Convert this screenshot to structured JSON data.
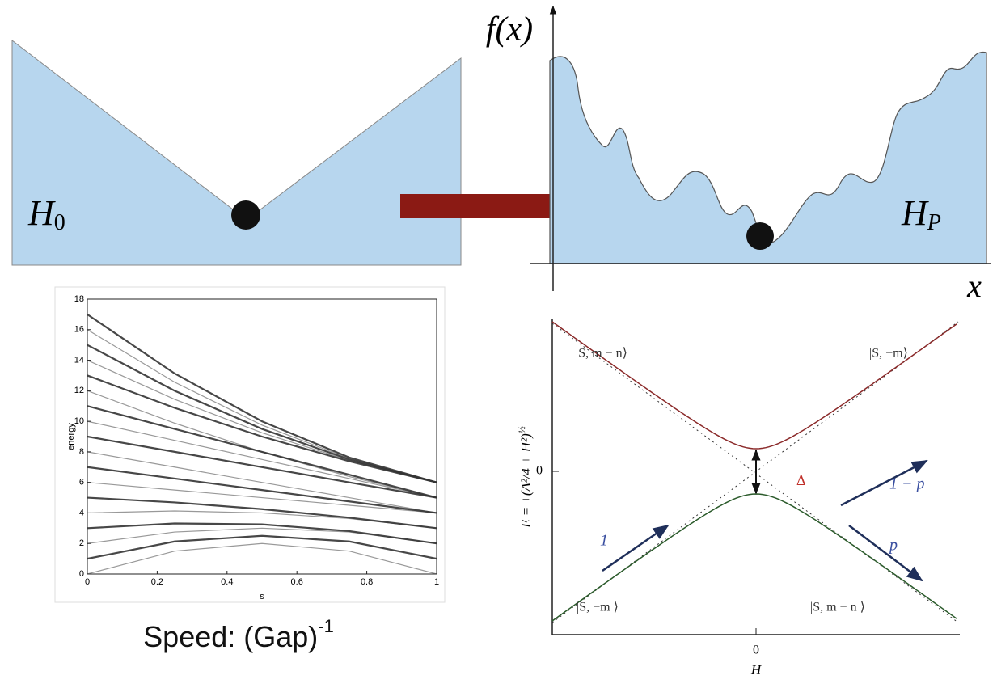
{
  "top_left": {
    "label": {
      "base": "H",
      "sub": "0"
    }
  },
  "top_right": {
    "y_label": "f(x)",
    "x_label": "x",
    "label": {
      "base": "H",
      "sub": "P"
    }
  },
  "chart_data": {
    "type": "line",
    "x": [
      0,
      0.25,
      0.5,
      0.75,
      1
    ],
    "color": "#333333",
    "series": [
      {
        "values": [
          0,
          1.5,
          2,
          1.5,
          0
        ]
      },
      {
        "values": [
          1,
          2.13,
          2.5,
          2.13,
          1
        ]
      },
      {
        "values": [
          2,
          2.75,
          3,
          2.75,
          2
        ]
      },
      {
        "values": [
          3,
          3.31,
          3.25,
          2.81,
          2
        ]
      },
      {
        "values": [
          4,
          4.13,
          4,
          3.63,
          3
        ]
      },
      {
        "values": [
          5,
          4.69,
          4.25,
          3.69,
          3
        ]
      },
      {
        "values": [
          6,
          5.5,
          5,
          4.5,
          4
        ]
      },
      {
        "values": [
          7,
          6.25,
          5.5,
          4.75,
          4
        ]
      },
      {
        "values": [
          8,
          7,
          6,
          5,
          4
        ]
      },
      {
        "values": [
          9,
          8,
          7,
          6,
          5
        ]
      },
      {
        "values": [
          10,
          8.75,
          7.5,
          6.25,
          5
        ]
      },
      {
        "values": [
          11,
          9.5,
          8,
          6.5,
          5
        ]
      },
      {
        "values": [
          12,
          9.88,
          8,
          6.38,
          5
        ]
      },
      {
        "values": [
          13,
          10.88,
          9,
          7.38,
          6
        ]
      },
      {
        "values": [
          14,
          11.44,
          9.25,
          7.44,
          6
        ]
      },
      {
        "values": [
          15,
          12,
          9.5,
          7.5,
          6
        ]
      },
      {
        "values": [
          16,
          12.56,
          9.75,
          7.56,
          6
        ]
      },
      {
        "values": [
          17,
          13.13,
          10,
          7.63,
          6
        ]
      }
    ],
    "xlim": [
      0,
      1
    ],
    "ylim": [
      0,
      18
    ],
    "xticks": [
      0,
      0.2,
      0.4,
      0.6,
      0.8,
      1
    ],
    "yticks": [
      0,
      2,
      4,
      6,
      8,
      10,
      12,
      14,
      16,
      18
    ],
    "xlabel": "s",
    "ylabel": "energy"
  },
  "caption": {
    "text": "Speed: (Gap)",
    "sup": "-1"
  },
  "landau_zener": {
    "y_label": {
      "text": "E = ±(Δ²/4 + H²)",
      "sup": "½"
    },
    "x_label": "H",
    "ytick": 0,
    "xtick": 0,
    "states": [
      "|S, m − n⟩",
      "|S, −m⟩",
      "|S, −m ⟩",
      "|S, m − n ⟩"
    ],
    "arrows": [
      "1",
      "1 − p",
      "p"
    ],
    "gap": "Δ"
  }
}
